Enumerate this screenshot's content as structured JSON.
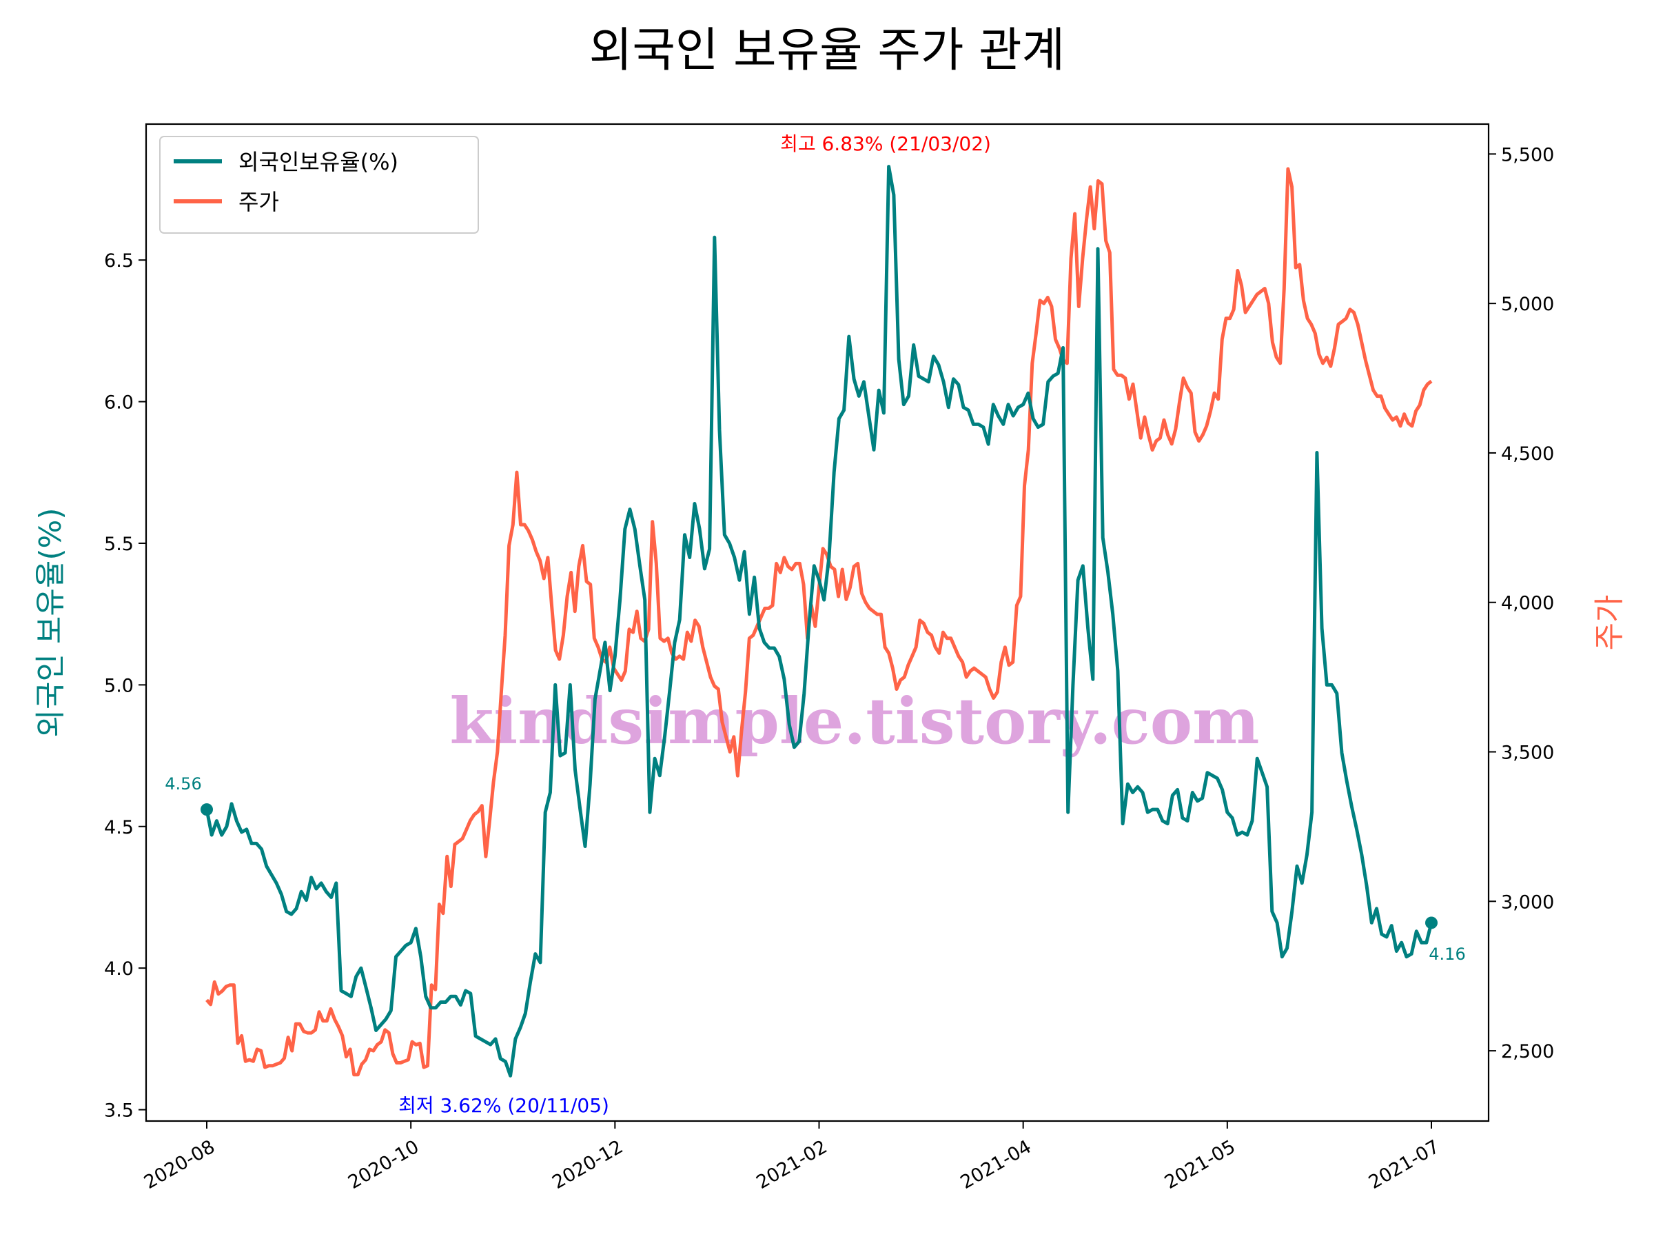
{
  "chart_data": {
    "type": "line",
    "title": "외국인 보유율 주가 관계",
    "watermark": "kindsimple.tistory.com",
    "x_ticks": [
      "2020-08",
      "2020-10",
      "2020-12",
      "2021-02",
      "2021-04",
      "2021-05",
      "2021-07"
    ],
    "y_left": {
      "label": "외국인 보유율(%)",
      "ticks": [
        "3.5",
        "4.0",
        "4.5",
        "5.0",
        "5.5",
        "6.0",
        "6.5"
      ],
      "range": [
        3.46,
        6.98
      ]
    },
    "y_right": {
      "label": "주가",
      "ticks": [
        "2,500",
        "3,000",
        "3,500",
        "4,000",
        "4,500",
        "5,000",
        "5,500"
      ],
      "range": [
        2265,
        5600
      ]
    },
    "legend": {
      "placement": "upper-left",
      "entries": [
        "외국인보유율(%)",
        "주가"
      ]
    },
    "annotations": {
      "max": "최고 6.83% (21/03/02)",
      "min": "최저 3.62% (20/11/05)",
      "start": "4.56",
      "end": "4.16"
    },
    "colors": {
      "foreign": "#008080",
      "price": "#ff6347",
      "max": "#ff0000",
      "min": "#0000ff",
      "watermark": "#dda0dd"
    },
    "grid": false,
    "series": [
      {
        "name": "외국인보유율(%)",
        "values": [
          4.56,
          4.47,
          4.52,
          4.47,
          4.5,
          4.58,
          4.52,
          4.48,
          4.49,
          4.44,
          4.44,
          4.42,
          4.36,
          4.33,
          4.3,
          4.26,
          4.2,
          4.19,
          4.21,
          4.27,
          4.24,
          4.32,
          4.28,
          4.3,
          4.27,
          4.25,
          4.3,
          3.92,
          3.91,
          3.9,
          3.97,
          4.0,
          3.93,
          3.86,
          3.78,
          3.8,
          3.82,
          3.85,
          4.04,
          4.06,
          4.08,
          4.09,
          4.14,
          4.04,
          3.9,
          3.86,
          3.86,
          3.88,
          3.88,
          3.9,
          3.9,
          3.87,
          3.92,
          3.91,
          3.76,
          3.75,
          3.74,
          3.73,
          3.75,
          3.68,
          3.67,
          3.62,
          3.75,
          3.79,
          3.84,
          3.95,
          4.05,
          4.02,
          4.55,
          4.62,
          5.0,
          4.75,
          4.76,
          5.0,
          4.7,
          4.56,
          4.43,
          4.65,
          4.95,
          5.05,
          5.15,
          4.98,
          5.1,
          5.3,
          5.55,
          5.62,
          5.55,
          5.42,
          5.3,
          4.55,
          4.74,
          4.68,
          4.82,
          4.98,
          5.15,
          5.23,
          5.53,
          5.45,
          5.64,
          5.55,
          5.41,
          5.48,
          6.58,
          5.9,
          5.53,
          5.5,
          5.45,
          5.37,
          5.47,
          5.25,
          5.38,
          5.2,
          5.15,
          5.13,
          5.13,
          5.1,
          5.02,
          4.86,
          4.78,
          4.8,
          4.97,
          5.22,
          5.42,
          5.37,
          5.3,
          5.45,
          5.75,
          5.94,
          5.97,
          6.23,
          6.08,
          6.02,
          6.07,
          5.95,
          5.83,
          6.04,
          5.96,
          6.83,
          6.73,
          6.15,
          5.99,
          6.02,
          6.2,
          6.09,
          6.08,
          6.07,
          6.16,
          6.13,
          6.07,
          5.98,
          6.08,
          6.06,
          5.98,
          5.97,
          5.92,
          5.92,
          5.91,
          5.85,
          5.99,
          5.95,
          5.92,
          5.99,
          5.95,
          5.98,
          5.99,
          6.03,
          5.94,
          5.91,
          5.92,
          6.07,
          6.09,
          6.1,
          6.19,
          4.55,
          5.0,
          5.37,
          5.42,
          5.2,
          5.02,
          6.54,
          5.52,
          5.4,
          5.25,
          5.05,
          4.51,
          4.65,
          4.62,
          4.64,
          4.62,
          4.55,
          4.56,
          4.56,
          4.52,
          4.51,
          4.61,
          4.63,
          4.53,
          4.52,
          4.62,
          4.59,
          4.6,
          4.69,
          4.68,
          4.67,
          4.63,
          4.55,
          4.53,
          4.47,
          4.48,
          4.47,
          4.52,
          4.74,
          4.69,
          4.64,
          4.2,
          4.16,
          4.04,
          4.07,
          4.2,
          4.36,
          4.3,
          4.4,
          4.55,
          5.82,
          5.2,
          5.0,
          5.0,
          4.97,
          4.76,
          4.66,
          4.57,
          4.49,
          4.4,
          4.29,
          4.16,
          4.21,
          4.12,
          4.11,
          4.15,
          4.06,
          4.09,
          4.04,
          4.05,
          4.13,
          4.09,
          4.09,
          4.16
        ]
      },
      {
        "name": "주가",
        "values": [
          2670,
          2655,
          2730,
          2690,
          2700,
          2715,
          2720,
          2720,
          2525,
          2550,
          2465,
          2470,
          2465,
          2505,
          2500,
          2445,
          2450,
          2450,
          2455,
          2460,
          2475,
          2545,
          2500,
          2590,
          2590,
          2565,
          2560,
          2560,
          2570,
          2630,
          2600,
          2600,
          2640,
          2605,
          2580,
          2550,
          2480,
          2505,
          2420,
          2420,
          2455,
          2470,
          2505,
          2500,
          2520,
          2530,
          2570,
          2560,
          2490,
          2460,
          2460,
          2465,
          2470,
          2530,
          2520,
          2525,
          2445,
          2450,
          2720,
          2705,
          2990,
          2960,
          3150,
          3050,
          3190,
          3200,
          3210,
          3240,
          3270,
          3290,
          3300,
          3320,
          3150,
          3270,
          3400,
          3500,
          3700,
          3890,
          4190,
          4260,
          4435,
          4260,
          4260,
          4240,
          4210,
          4170,
          4140,
          4080,
          4150,
          3990,
          3840,
          3810,
          3890,
          4020,
          4100,
          3970,
          4120,
          4190,
          4070,
          4060,
          3880,
          3850,
          3810,
          3800,
          3850,
          3780,
          3760,
          3740,
          3770,
          3910,
          3900,
          3970,
          3880,
          3870,
          3910,
          4270,
          4130,
          3880,
          3870,
          3880,
          3830,
          3810,
          3820,
          3810,
          3900,
          3870,
          3940,
          3920,
          3850,
          3800,
          3750,
          3720,
          3710,
          3600,
          3550,
          3500,
          3550,
          3420,
          3570,
          3700,
          3880,
          3890,
          3920,
          3950,
          3980,
          3980,
          3990,
          4130,
          4100,
          4150,
          4120,
          4110,
          4130,
          4130,
          4060,
          3880,
          3990,
          3920,
          4050,
          4180,
          4160,
          4120,
          4110,
          4020,
          4110,
          4010,
          4050,
          4120,
          4130,
          4030,
          4000,
          3980,
          3970,
          3960,
          3960,
          3850,
          3830,
          3780,
          3710,
          3740,
          3750,
          3790,
          3820,
          3850,
          3940,
          3930,
          3900,
          3890,
          3850,
          3830,
          3900,
          3880,
          3880,
          3850,
          3820,
          3800,
          3750,
          3770,
          3780,
          3770,
          3760,
          3750,
          3710,
          3680,
          3700,
          3800,
          3850,
          3790,
          3800,
          3990,
          4020,
          4390,
          4510,
          4800,
          4900,
          5010,
          5000,
          5020,
          4990,
          4880,
          4850,
          4810,
          4800,
          5150,
          5300,
          4990,
          5150,
          5280,
          5390,
          5250,
          5410,
          5400,
          5210,
          5170,
          4780,
          4760,
          4760,
          4750,
          4680,
          4730,
          4640,
          4550,
          4620,
          4560,
          4510,
          4540,
          4550,
          4610,
          4560,
          4530,
          4580,
          4670,
          4750,
          4720,
          4700,
          4570,
          4540,
          4560,
          4590,
          4640,
          4700,
          4680,
          4880,
          4950,
          4950,
          4980,
          5110,
          5060,
          4970,
          4990,
          5010,
          5030,
          5040,
          5050,
          5000,
          4870,
          4820,
          4800,
          5050,
          5450,
          5390,
          5120,
          5130,
          5010,
          4950,
          4930,
          4900,
          4830,
          4800,
          4820,
          4790,
          4850,
          4930,
          4940,
          4950,
          4980,
          4970,
          4930,
          4870,
          4810,
          4760,
          4710,
          4690,
          4690,
          4650,
          4630,
          4610,
          4620,
          4590,
          4630,
          4600,
          4590,
          4640,
          4660,
          4710,
          4730,
          4740
        ]
      }
    ]
  }
}
